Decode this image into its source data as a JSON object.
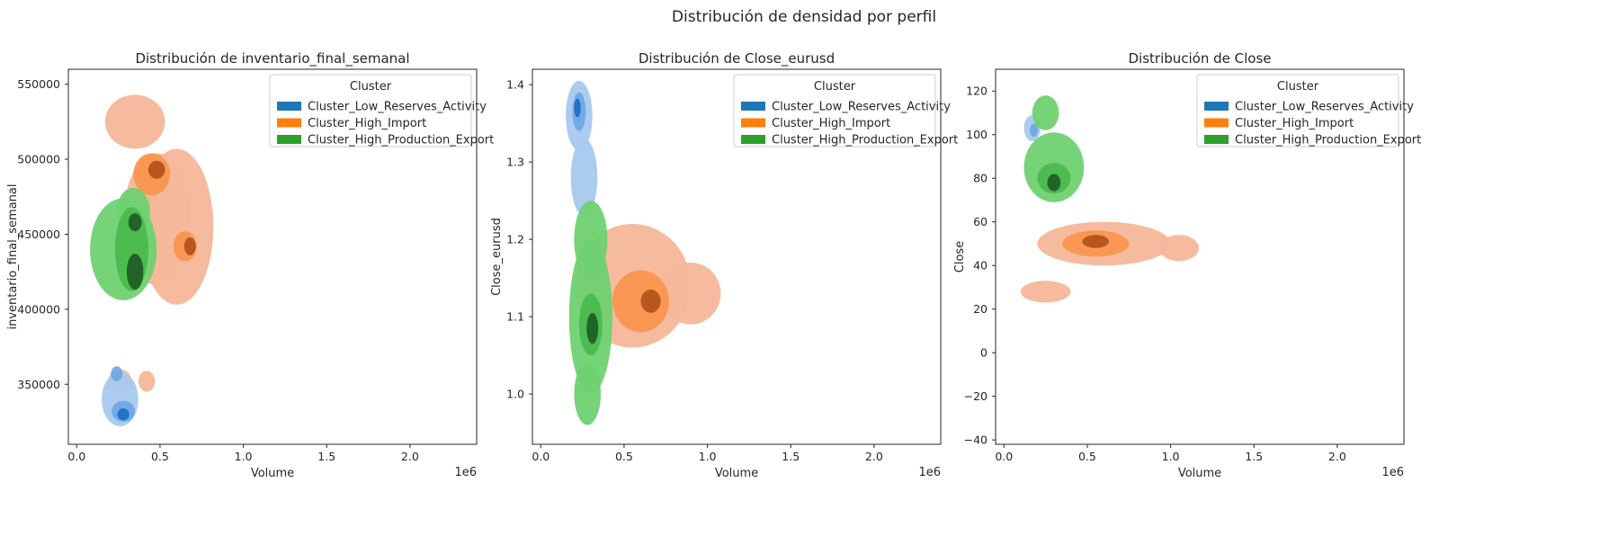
{
  "figure": {
    "suptitle": "Distribución de densidad por perfil"
  },
  "legend": {
    "title": "Cluster",
    "entries": [
      {
        "name": "Cluster_Low_Reserves_Activity",
        "color": "#1f77b4"
      },
      {
        "name": "Cluster_High_Import",
        "color": "#ff7f0e"
      },
      {
        "name": "Cluster_High_Production_Export",
        "color": "#2ca02c"
      }
    ]
  },
  "palette": {
    "blue_light": "#a8c9ee",
    "blue_mid": "#6aa6e4",
    "blue_dark": "#1f6fc4",
    "orange_light": "#f5b79a",
    "orange_mid": "#f9944a",
    "orange_dark": "#e16c10",
    "orange_deep": "#b4531a",
    "green_light": "#6fd171",
    "green_mid": "#48b94b",
    "green_dark": "#2a8a30",
    "green_deep": "#205f26"
  },
  "chart_data": [
    {
      "type": "kde2d",
      "title": "Distribución de inventario_final_semanal",
      "xlabel": "Volume",
      "ylabel": "inventario_final_semanal",
      "x_offset_label": "1e6",
      "xlim": [
        -0.05,
        2.4
      ],
      "ylim": [
        310000,
        560000
      ],
      "xticks": [
        0.0,
        0.5,
        1.0,
        1.5,
        2.0
      ],
      "xtick_labels": [
        "0.0",
        "0.5",
        "1.0",
        "1.5",
        "2.0"
      ],
      "yticks": [
        350000,
        400000,
        450000,
        500000,
        550000
      ],
      "ytick_labels": [
        "350000",
        "400000",
        "450000",
        "500000",
        "550000"
      ],
      "series": [
        {
          "name": "Cluster_High_Import",
          "blobs": [
            {
              "x": 0.48,
              "y": 460000,
              "sx": 0.2,
              "sy": 44000,
              "level": 0
            },
            {
              "x": 0.6,
              "y": 455000,
              "sx": 0.22,
              "sy": 52000,
              "level": 0
            },
            {
              "x": 0.35,
              "y": 525000,
              "sx": 0.18,
              "sy": 18000,
              "level": 0
            },
            {
              "x": 0.26,
              "y": 352000,
              "sx": 0.07,
              "sy": 8000,
              "level": 0
            },
            {
              "x": 0.42,
              "y": 352000,
              "sx": 0.05,
              "sy": 7000,
              "level": 0
            },
            {
              "x": 0.45,
              "y": 490000,
              "sx": 0.11,
              "sy": 14000,
              "level": 1
            },
            {
              "x": 0.65,
              "y": 442000,
              "sx": 0.07,
              "sy": 10000,
              "level": 1
            },
            {
              "x": 0.48,
              "y": 493000,
              "sx": 0.05,
              "sy": 6000,
              "level": 2
            },
            {
              "x": 0.68,
              "y": 442000,
              "sx": 0.035,
              "sy": 6000,
              "level": 2
            }
          ]
        },
        {
          "name": "Cluster_Low_Reserves_Activity",
          "blobs": [
            {
              "x": 0.26,
              "y": 340000,
              "sx": 0.11,
              "sy": 18000,
              "level": 0
            },
            {
              "x": 0.28,
              "y": 332000,
              "sx": 0.07,
              "sy": 7000,
              "level": 1
            },
            {
              "x": 0.24,
              "y": 357000,
              "sx": 0.035,
              "sy": 5000,
              "level": 1
            },
            {
              "x": 0.28,
              "y": 330000,
              "sx": 0.035,
              "sy": 4000,
              "level": 2
            }
          ]
        },
        {
          "name": "Cluster_High_Production_Export",
          "blobs": [
            {
              "x": 0.28,
              "y": 440000,
              "sx": 0.2,
              "sy": 34000,
              "level": 0
            },
            {
              "x": 0.34,
              "y": 465000,
              "sx": 0.1,
              "sy": 16000,
              "level": 0
            },
            {
              "x": 0.33,
              "y": 440000,
              "sx": 0.1,
              "sy": 28000,
              "level": 1
            },
            {
              "x": 0.35,
              "y": 425000,
              "sx": 0.05,
              "sy": 12000,
              "level": 2
            },
            {
              "x": 0.35,
              "y": 458000,
              "sx": 0.04,
              "sy": 6000,
              "level": 2
            }
          ]
        }
      ]
    },
    {
      "type": "kde2d",
      "title": "Distribución de Close_eurusd",
      "xlabel": "Volume",
      "ylabel": "Close_eurusd",
      "x_offset_label": "1e6",
      "xlim": [
        -0.05,
        2.4
      ],
      "ylim": [
        0.935,
        1.42
      ],
      "xticks": [
        0.0,
        0.5,
        1.0,
        1.5,
        2.0
      ],
      "xtick_labels": [
        "0.0",
        "0.5",
        "1.0",
        "1.5",
        "2.0"
      ],
      "yticks": [
        1.0,
        1.1,
        1.2,
        1.3,
        1.4
      ],
      "ytick_labels": [
        "1.0",
        "1.1",
        "1.2",
        "1.3",
        "1.4"
      ],
      "series": [
        {
          "name": "Cluster_Low_Reserves_Activity",
          "blobs": [
            {
              "x": 0.23,
              "y": 1.36,
              "sx": 0.08,
              "sy": 0.045,
              "level": 0
            },
            {
              "x": 0.26,
              "y": 1.28,
              "sx": 0.08,
              "sy": 0.05,
              "level": 0
            },
            {
              "x": 0.23,
              "y": 1.365,
              "sx": 0.04,
              "sy": 0.025,
              "level": 1
            },
            {
              "x": 0.22,
              "y": 1.37,
              "sx": 0.02,
              "sy": 0.012,
              "level": 2
            }
          ]
        },
        {
          "name": "Cluster_High_Import",
          "blobs": [
            {
              "x": 0.55,
              "y": 1.14,
              "sx": 0.35,
              "sy": 0.08,
              "level": 0
            },
            {
              "x": 0.9,
              "y": 1.13,
              "sx": 0.18,
              "sy": 0.04,
              "level": 0
            },
            {
              "x": 0.6,
              "y": 1.12,
              "sx": 0.17,
              "sy": 0.04,
              "level": 1
            },
            {
              "x": 0.66,
              "y": 1.12,
              "sx": 0.06,
              "sy": 0.015,
              "level": 2
            }
          ]
        },
        {
          "name": "Cluster_High_Production_Export",
          "blobs": [
            {
              "x": 0.3,
              "y": 1.1,
              "sx": 0.13,
              "sy": 0.1,
              "level": 0
            },
            {
              "x": 0.3,
              "y": 1.2,
              "sx": 0.1,
              "sy": 0.05,
              "level": 0
            },
            {
              "x": 0.28,
              "y": 1.0,
              "sx": 0.08,
              "sy": 0.04,
              "level": 0
            },
            {
              "x": 0.3,
              "y": 1.09,
              "sx": 0.07,
              "sy": 0.04,
              "level": 1
            },
            {
              "x": 0.31,
              "y": 1.085,
              "sx": 0.035,
              "sy": 0.02,
              "level": 2
            }
          ]
        }
      ]
    },
    {
      "type": "kde2d",
      "title": "Distribución de Close",
      "xlabel": "Volume",
      "ylabel": "Close",
      "x_offset_label": "1e6",
      "xlim": [
        -0.05,
        2.4
      ],
      "ylim": [
        -42,
        130
      ],
      "xticks": [
        0.0,
        0.5,
        1.0,
        1.5,
        2.0
      ],
      "xtick_labels": [
        "0.0",
        "0.5",
        "1.0",
        "1.5",
        "2.0"
      ],
      "yticks": [
        -40,
        -20,
        0,
        20,
        40,
        60,
        80,
        100,
        120
      ],
      "ytick_labels": [
        "−40",
        "−20",
        "0",
        "20",
        "40",
        "60",
        "80",
        "100",
        "120"
      ],
      "series": [
        {
          "name": "Cluster_High_Import",
          "blobs": [
            {
              "x": 0.6,
              "y": 50,
              "sx": 0.4,
              "sy": 10,
              "level": 0
            },
            {
              "x": 0.25,
              "y": 28,
              "sx": 0.15,
              "sy": 5,
              "level": 0
            },
            {
              "x": 1.05,
              "y": 48,
              "sx": 0.12,
              "sy": 6,
              "level": 0
            },
            {
              "x": 0.55,
              "y": 50,
              "sx": 0.2,
              "sy": 6,
              "level": 1
            },
            {
              "x": 0.55,
              "y": 51,
              "sx": 0.08,
              "sy": 3,
              "level": 2
            }
          ]
        },
        {
          "name": "Cluster_Low_Reserves_Activity",
          "blobs": [
            {
              "x": 0.17,
              "y": 103,
              "sx": 0.05,
              "sy": 6,
              "level": 0
            },
            {
              "x": 0.18,
              "y": 102,
              "sx": 0.025,
              "sy": 3,
              "level": 1
            }
          ]
        },
        {
          "name": "Cluster_High_Production_Export",
          "blobs": [
            {
              "x": 0.3,
              "y": 85,
              "sx": 0.18,
              "sy": 16,
              "level": 0
            },
            {
              "x": 0.25,
              "y": 110,
              "sx": 0.08,
              "sy": 8,
              "level": 0
            },
            {
              "x": 0.3,
              "y": 80,
              "sx": 0.1,
              "sy": 7,
              "level": 1
            },
            {
              "x": 0.3,
              "y": 78,
              "sx": 0.04,
              "sy": 4,
              "level": 2
            }
          ]
        }
      ]
    }
  ]
}
